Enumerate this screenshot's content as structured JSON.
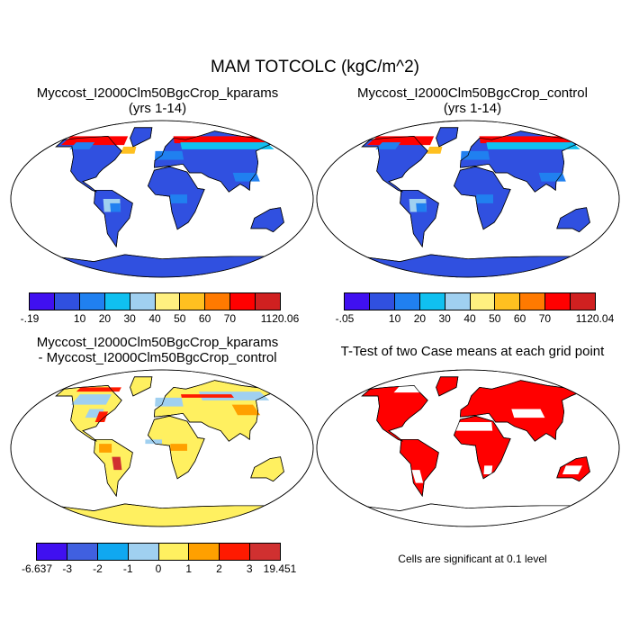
{
  "title": "MAM TOTCOLC (kgC/m^2)",
  "panels": [
    {
      "title_line1": "Myccost_I2000Clm50BgcCrop_kparams",
      "title_line2": "(yrs 1-14)",
      "palette": "abs"
    },
    {
      "title_line1": "Myccost_I2000Clm50BgcCrop_control",
      "title_line2": "(yrs 1-14)",
      "palette": "abs"
    },
    {
      "title_line1": "Myccost_I2000Clm50BgcCrop_kparams",
      "title_line2": "- Myccost_I2000Clm50BgcCrop_control",
      "palette": "diff"
    },
    {
      "title_line1": "T-Test of two Case means at each grid point",
      "title_line2": "",
      "palette": "ttest"
    }
  ],
  "colorbars": {
    "kparams": {
      "colors": [
        "#4010f0",
        "#3050e0",
        "#2080f0",
        "#10c0f0",
        "#a0d0f0",
        "#fff080",
        "#ffc020",
        "#ff7a00",
        "#ff0000",
        "#d02020"
      ],
      "labels": [
        "-.19",
        "",
        "10",
        "20",
        "30",
        "40",
        "50",
        "60",
        "70",
        "",
        "1120.06"
      ]
    },
    "control": {
      "colors": [
        "#4010f0",
        "#3050e0",
        "#2080f0",
        "#10c0f0",
        "#a0d0f0",
        "#fff080",
        "#ffc020",
        "#ff7a00",
        "#ff0000",
        "#d02020"
      ],
      "labels": [
        "-.05",
        "",
        "10",
        "20",
        "30",
        "40",
        "50",
        "60",
        "70",
        "",
        "1120.04"
      ]
    },
    "diff": {
      "colors": [
        "#4010f0",
        "#4060e0",
        "#10a8f0",
        "#a0d0f0",
        "#fff060",
        "#ffa000",
        "#ff1a00",
        "#d03030"
      ],
      "labels": [
        "-6.637",
        "-3",
        "-2",
        "-1",
        "0",
        "1",
        "2",
        "3",
        "19.451"
      ]
    }
  },
  "ttest_note": "Cells are significant at 0.1 level"
}
